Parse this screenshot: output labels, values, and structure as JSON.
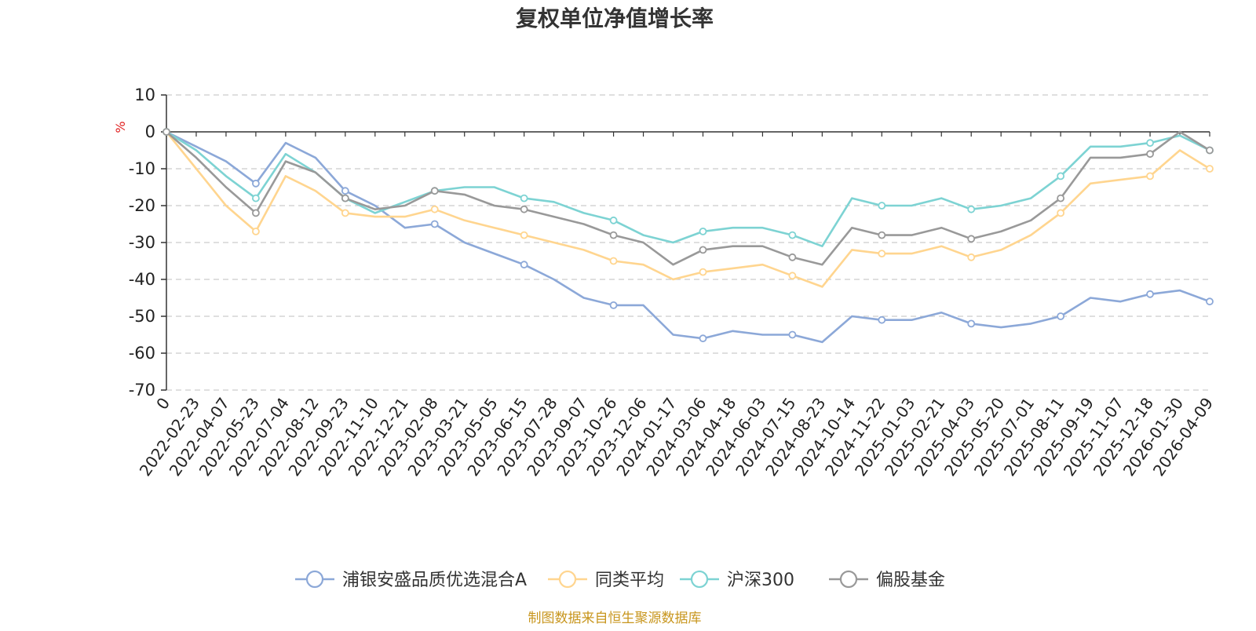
{
  "chart_data": {
    "type": "line",
    "title": "复权单位净值增长率",
    "ylabel": "%",
    "xlabel": "",
    "ylim": [
      -70,
      10
    ],
    "yticks": [
      "10",
      "0",
      "-10",
      "-20",
      "-30",
      "-40",
      "-50",
      "-60",
      "-70"
    ],
    "grid": true,
    "legend_position": "bottom",
    "categories": [
      "0",
      "2022-02-23",
      "2022-04-07",
      "2022-05-23",
      "2022-07-04",
      "2022-08-12",
      "2022-09-23",
      "2022-11-10",
      "2022-12-21",
      "2023-02-08",
      "2023-03-21",
      "2023-05-05",
      "2023-06-15",
      "2023-07-28",
      "2023-09-07",
      "2023-10-26",
      "2023-12-06",
      "2024-01-17",
      "2024-03-06",
      "2024-04-18",
      "2024-06-03",
      "2024-07-15",
      "2024-08-23",
      "2024-10-14",
      "2024-11-22",
      "2025-01-03",
      "2025-02-21",
      "2025-04-03",
      "2025-05-20",
      "2025-07-01",
      "2025-08-11",
      "2025-09-19",
      "2025-11-07",
      "2025-12-18",
      "2026-01-30",
      "2026-04-09"
    ],
    "series": [
      {
        "name": "浦银安盛品质优选混合A",
        "color": "#8ca8d8",
        "values": [
          0,
          -4,
          -8,
          -14,
          -3,
          -7,
          -16,
          -20,
          -26,
          -25,
          -30,
          -33,
          -36,
          -40,
          -45,
          -47,
          -47,
          -55,
          -56,
          -54,
          -55,
          -55,
          -57,
          -50,
          -51,
          -51,
          -49,
          -52,
          -53,
          -52,
          -50,
          -45,
          -46,
          -44,
          -43,
          -46
        ]
      },
      {
        "name": "同类平均",
        "color": "#ffd58f",
        "values": [
          0,
          -10,
          -20,
          -27,
          -12,
          -16,
          -22,
          -23,
          -23,
          -21,
          -24,
          -26,
          -28,
          -30,
          -32,
          -35,
          -36,
          -40,
          -38,
          -37,
          -36,
          -39,
          -42,
          -32,
          -33,
          -33,
          -31,
          -34,
          -32,
          -28,
          -22,
          -14,
          -13,
          -12,
          -5,
          -10
        ]
      },
      {
        "name": "沪深300",
        "color": "#7dd3d3",
        "values": [
          0,
          -5,
          -12,
          -18,
          -6,
          -11,
          -18,
          -22,
          -19,
          -16,
          -15,
          -15,
          -18,
          -19,
          -22,
          -24,
          -28,
          -30,
          -27,
          -26,
          -26,
          -28,
          -31,
          -18,
          -20,
          -20,
          -18,
          -21,
          -20,
          -18,
          -12,
          -4,
          -4,
          -3,
          -1,
          -5
        ]
      },
      {
        "name": "偏股基金",
        "color": "#999999",
        "values": [
          0,
          -7,
          -15,
          -22,
          -8,
          -11,
          -18,
          -21,
          -20,
          -16,
          -17,
          -20,
          -21,
          -23,
          -25,
          -28,
          -30,
          -36,
          -32,
          -31,
          -31,
          -34,
          -36,
          -26,
          -28,
          -28,
          -26,
          -29,
          -27,
          -24,
          -18,
          -7,
          -7,
          -6,
          0,
          -5
        ]
      }
    ]
  },
  "footer": {
    "source": "制图数据来自恒生聚源数据库"
  }
}
